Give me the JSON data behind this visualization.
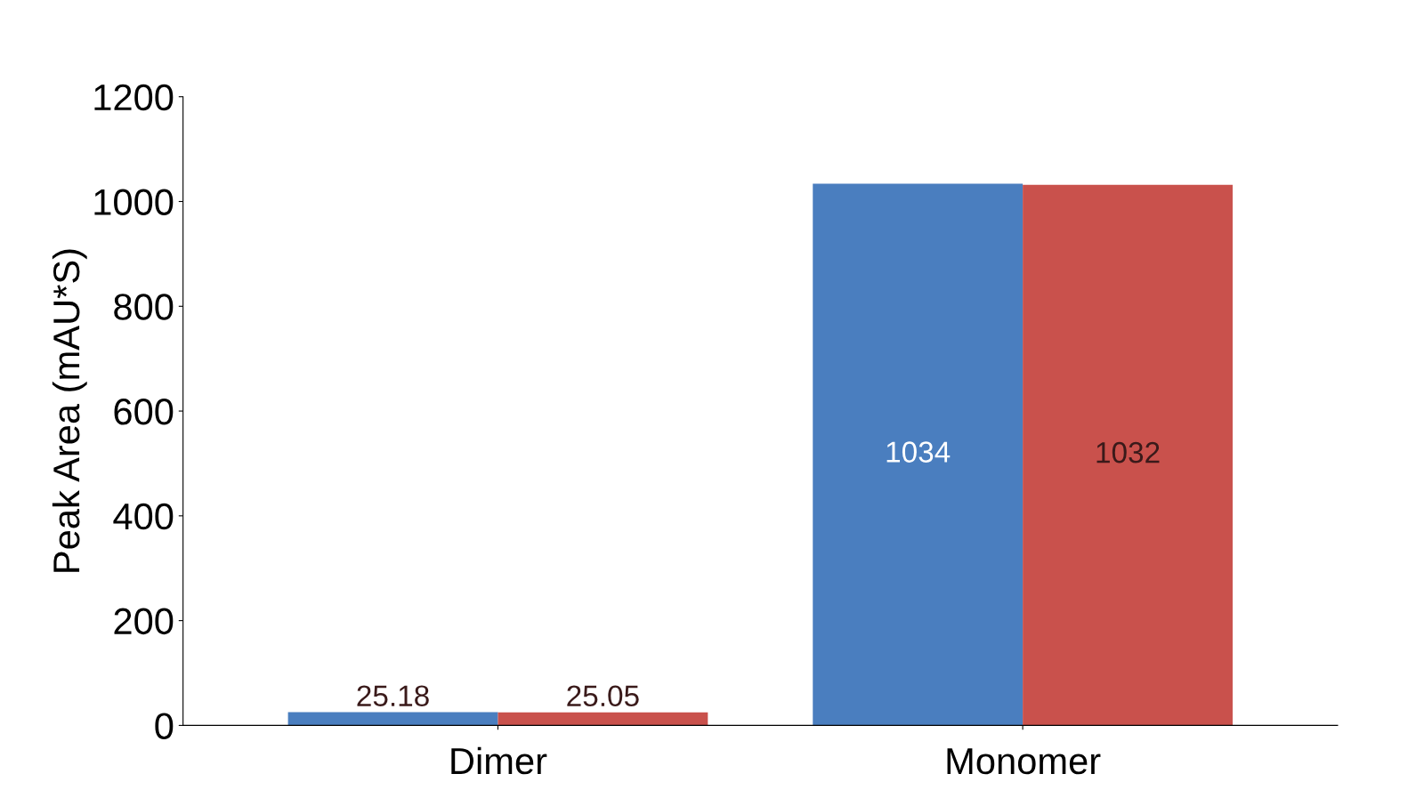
{
  "chart_data": {
    "type": "bar",
    "ylabel": "Peak Area (mAU*S)",
    "categories": [
      "Dimer",
      "Monomer"
    ],
    "series": [
      {
        "color": "#4a7ebf",
        "values": [
          25.18,
          1034
        ]
      },
      {
        "color": "#c9514c",
        "values": [
          25.05,
          1032
        ]
      }
    ],
    "ylim": [
      0,
      1200
    ],
    "yticks": [
      0,
      200,
      400,
      600,
      800,
      1000,
      1200
    ],
    "data_labels": true,
    "grid": false
  }
}
